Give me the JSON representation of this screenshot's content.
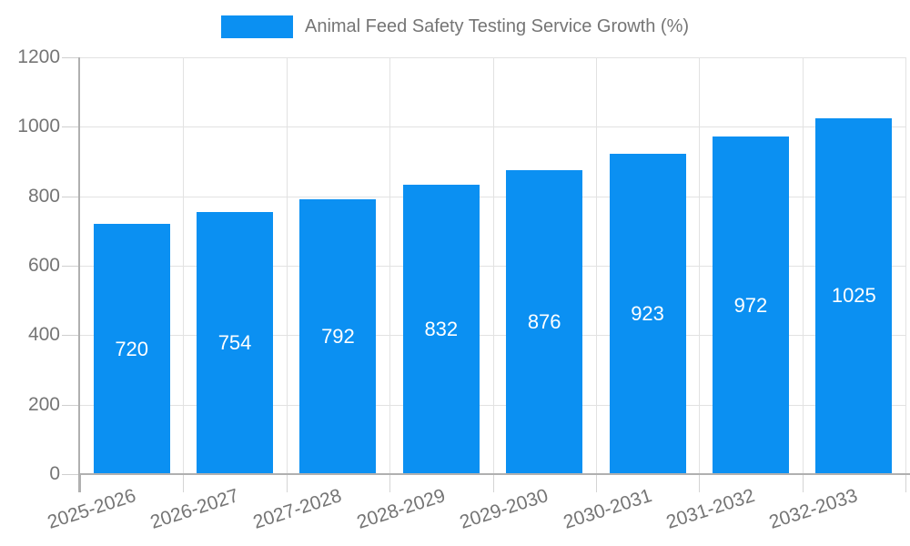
{
  "legend": {
    "label": "Animal Feed Safety Testing Service Growth (%)",
    "swatch_color": "#0b90f2"
  },
  "chart_data": {
    "type": "bar",
    "title": "Animal Feed Safety Testing Service Growth (%)",
    "categories": [
      "2025-2026",
      "2026-2027",
      "2027-2028",
      "2028-2029",
      "2029-2030",
      "2030-2031",
      "2031-2032",
      "2032-2033"
    ],
    "values": [
      720,
      754,
      792,
      832,
      876,
      923,
      972,
      1025
    ],
    "xlabel": "",
    "ylabel": "",
    "ylim": [
      0,
      1200
    ],
    "yticks": [
      0,
      200,
      400,
      600,
      800,
      1000,
      1200
    ],
    "grid": true,
    "legend_position": "top",
    "bar_color": "#0b90f2",
    "value_label_color": "#ffffff",
    "axis_text_color": "#757575",
    "axis_line_color": "#b0b0b0",
    "grid_color": "#e2e2e2"
  }
}
